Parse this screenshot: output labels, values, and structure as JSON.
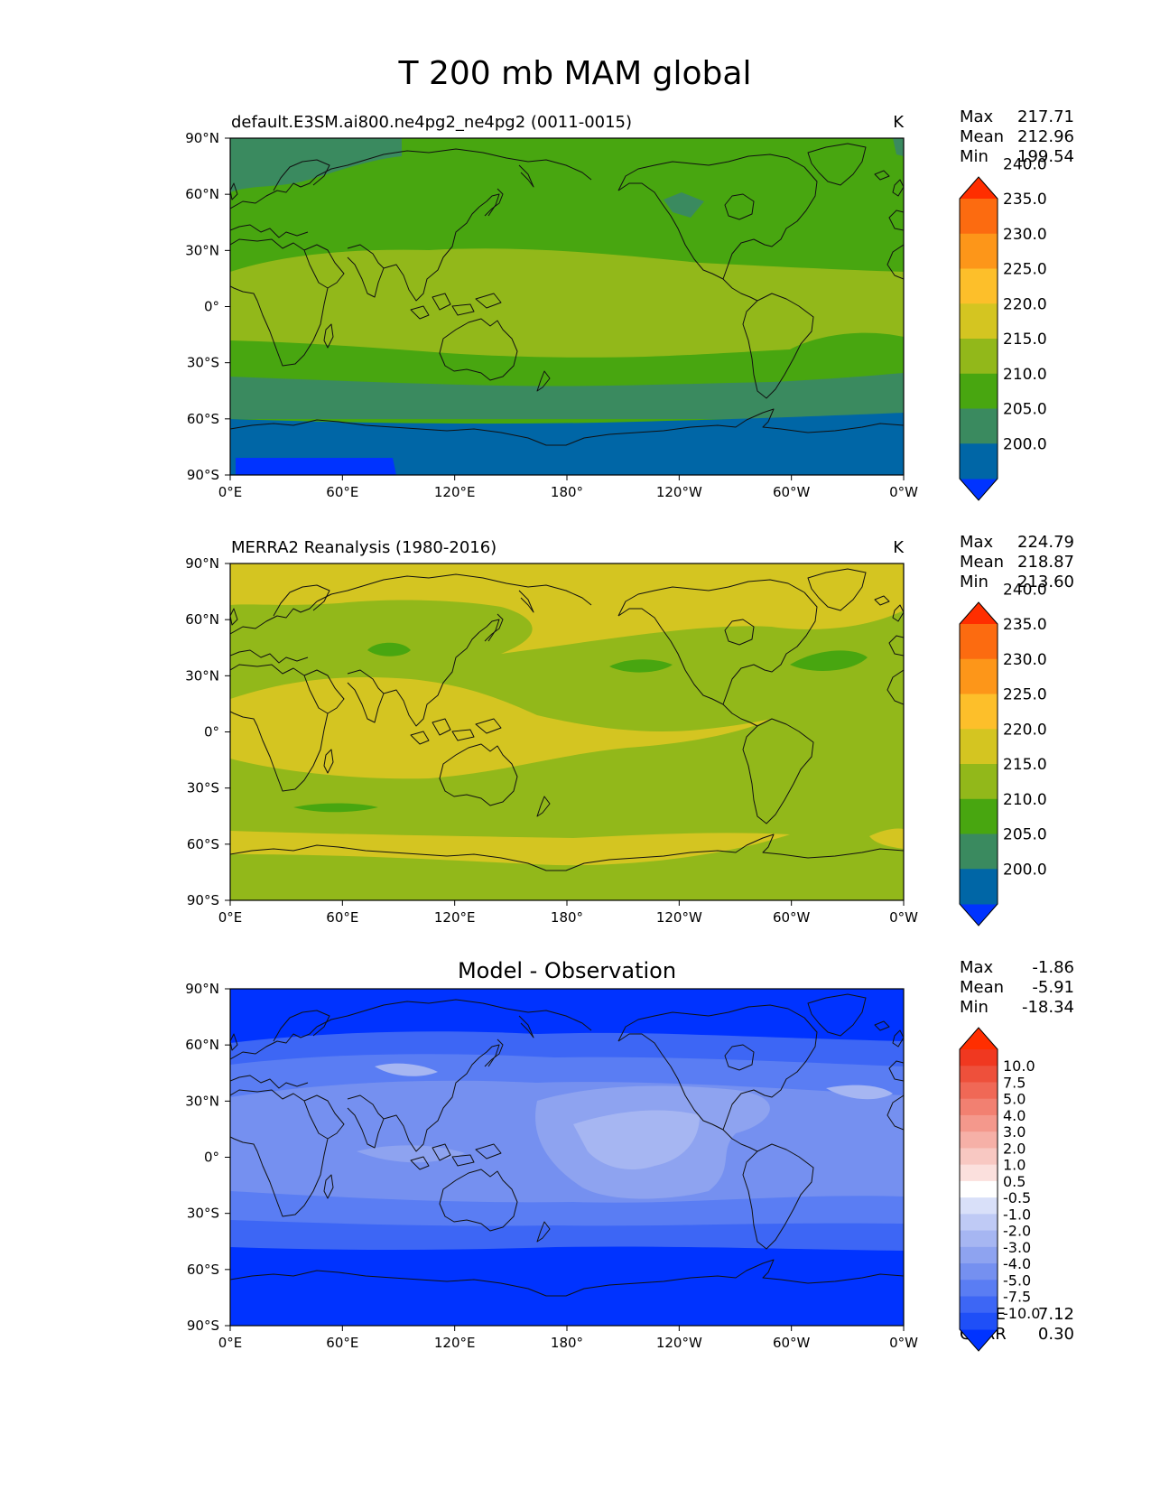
{
  "figure_title": "T 200 mb MAM global",
  "x_ticks": [
    "0°E",
    "60°E",
    "120°E",
    "180°",
    "120°W",
    "60°W",
    "0°W"
  ],
  "y_ticks": [
    "90°N",
    "60°N",
    "30°N",
    "0°",
    "30°S",
    "60°S",
    "90°S"
  ],
  "panels": [
    {
      "title_left": "default.E3SM.ai800.ne4pg2_ne4pg2 (0011-0015)",
      "title_center": "",
      "units": "K",
      "stats": [
        {
          "label": "Max",
          "value": "217.71"
        },
        {
          "label": "Mean",
          "value": "212.96"
        },
        {
          "label": "Min",
          "value": "199.54"
        }
      ],
      "colorbar": {
        "colors": [
          "#0033ff",
          "#0066a6",
          "#3a8a5f",
          "#48a610",
          "#92b81a",
          "#d4c521",
          "#fdbf2a",
          "#fd9619",
          "#fc6b10",
          "#ff2e00"
        ],
        "labels": [
          "200.0",
          "205.0",
          "210.0",
          "215.0",
          "220.0",
          "225.0",
          "230.0",
          "235.0",
          "240.0"
        ]
      },
      "extra_stats": []
    },
    {
      "title_left": "MERRA2 Reanalysis (1980-2016)",
      "title_center": "",
      "units": "K",
      "stats": [
        {
          "label": "Max",
          "value": "224.79"
        },
        {
          "label": "Mean",
          "value": "218.87"
        },
        {
          "label": "Min",
          "value": "213.60"
        }
      ],
      "colorbar": {
        "colors": [
          "#0033ff",
          "#0066a6",
          "#3a8a5f",
          "#48a610",
          "#92b81a",
          "#d4c521",
          "#fdbf2a",
          "#fd9619",
          "#fc6b10",
          "#ff2e00"
        ],
        "labels": [
          "200.0",
          "205.0",
          "210.0",
          "215.0",
          "220.0",
          "225.0",
          "230.0",
          "235.0",
          "240.0"
        ]
      },
      "extra_stats": []
    },
    {
      "title_left": "",
      "title_center": "Model - Observation",
      "units": "",
      "stats": [
        {
          "label": "Max",
          "value": "-1.86"
        },
        {
          "label": "Mean",
          "value": "-5.91"
        },
        {
          "label": "Min",
          "value": "-18.34"
        }
      ],
      "colorbar": {
        "colors": [
          "#0033ff",
          "#1f4ff7",
          "#3d66f5",
          "#5a7df3",
          "#7590f0",
          "#8ea3f0",
          "#a6b6f2",
          "#bfcaf5",
          "#d9e0f9",
          "#ffffff",
          "#fbe0dd",
          "#f8c8c2",
          "#f6b0a7",
          "#f4988c",
          "#f28071",
          "#f06856",
          "#ee503b",
          "#f03820",
          "#ff2e00"
        ],
        "labels": [
          "-10.0",
          "-7.5",
          "-5.0",
          "-4.0",
          "-3.0",
          "-2.0",
          "-1.0",
          "-0.5",
          "0.5",
          "1.0",
          "2.0",
          "3.0",
          "4.0",
          "5.0",
          "7.5",
          "10.0"
        ]
      },
      "extra_stats": [
        {
          "label": "RMSE",
          "value": "7.12"
        },
        {
          "label": "CORR",
          "value": "0.30"
        }
      ]
    }
  ]
}
